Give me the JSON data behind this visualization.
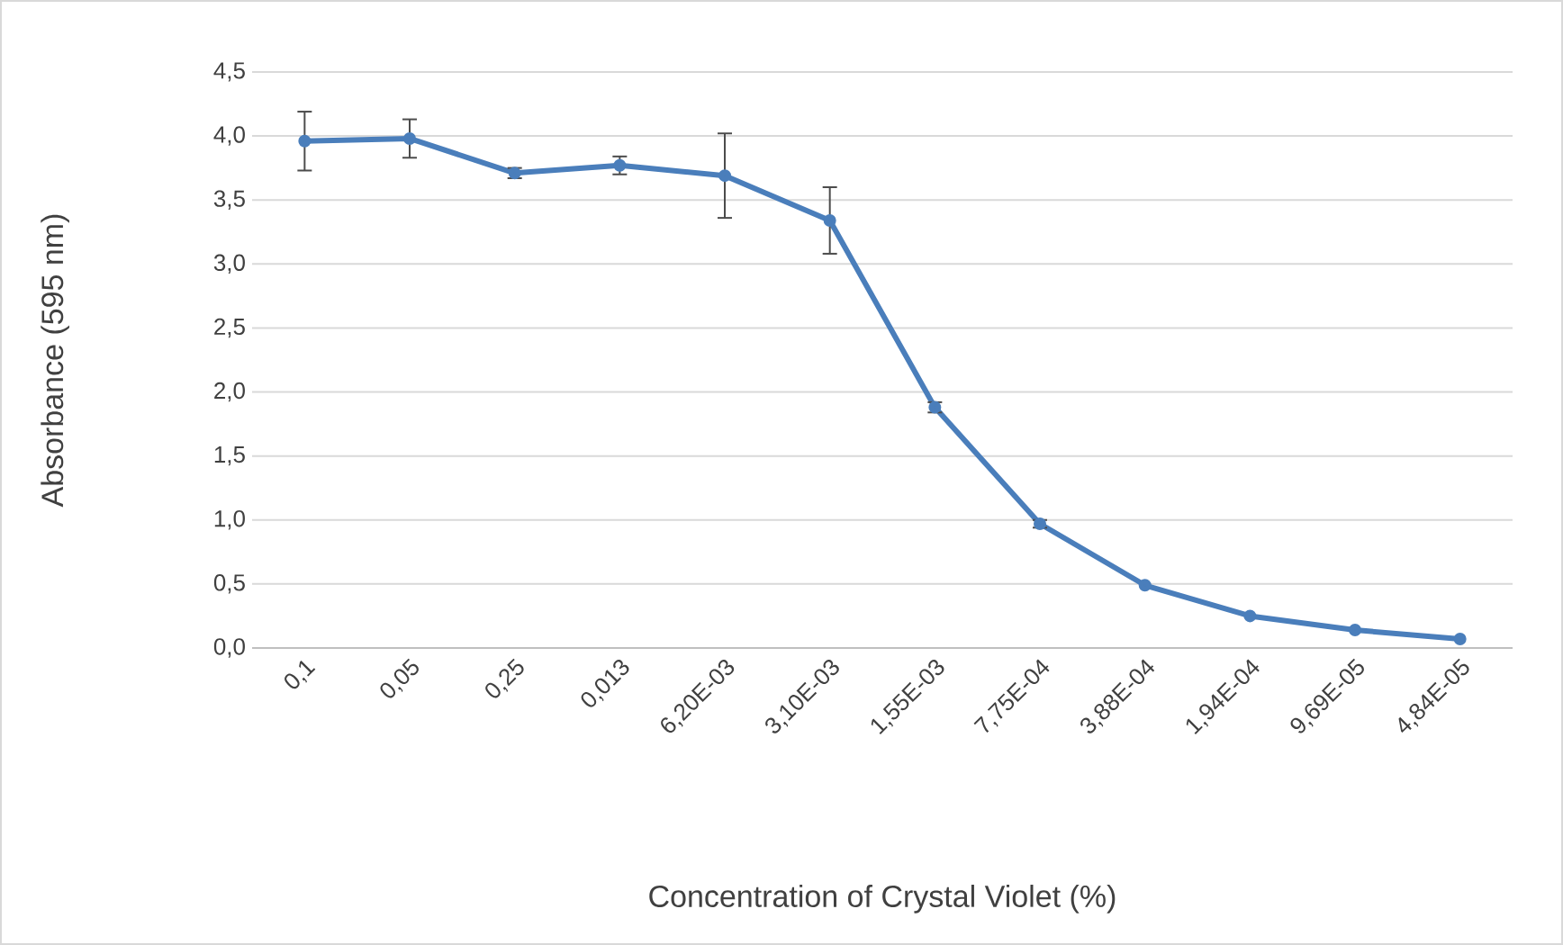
{
  "chart_data": {
    "type": "line",
    "xlabel": "Concentration of Crystal Violet (%)",
    "ylabel": "Absorbance (595 nm)",
    "categories": [
      "0,1",
      "0,05",
      "0,25",
      "0,013",
      "6,20E-03",
      "3,10E-03",
      "1,55E-03",
      "7,75E-04",
      "3,88E-04",
      "1,94E-04",
      "9,69E-05",
      "4,84E-05"
    ],
    "series": [
      {
        "color": "#4a7ebb",
        "values": [
          3.96,
          3.98,
          3.71,
          3.77,
          3.69,
          3.34,
          1.88,
          0.97,
          0.49,
          0.25,
          0.14,
          0.07
        ],
        "errors": [
          0.23,
          0.15,
          0.04,
          0.07,
          0.33,
          0.26,
          0.04,
          0.03,
          null,
          null,
          null,
          null
        ]
      }
    ],
    "ylim": [
      0,
      4.5
    ],
    "yticks": [
      {
        "value": 0,
        "label": "0,0"
      },
      {
        "value": 0.5,
        "label": "0,5"
      },
      {
        "value": 1,
        "label": "1,0"
      },
      {
        "value": 1.5,
        "label": "1,5"
      },
      {
        "value": 2,
        "label": "2,0"
      },
      {
        "value": 2.5,
        "label": "2,5"
      },
      {
        "value": 3,
        "label": "3,0"
      },
      {
        "value": 3.5,
        "label": "3,5"
      },
      {
        "value": 4,
        "label": "4,0"
      },
      {
        "value": 4.5,
        "label": "4,5"
      }
    ],
    "grid": "y",
    "marker": "circle",
    "line_style": "solid"
  }
}
